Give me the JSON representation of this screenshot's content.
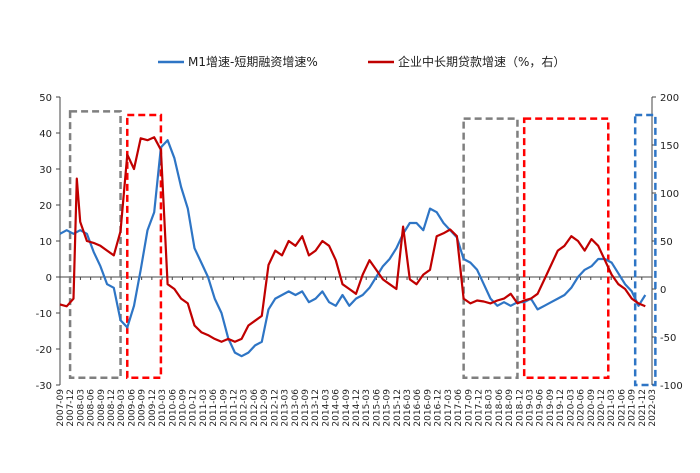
{
  "chart_data": {
    "type": "line",
    "legend": {
      "placement": "top-center"
    },
    "axes": {
      "left": {
        "min": -30,
        "max": 50,
        "ticks": [
          -30,
          -20,
          -10,
          0,
          10,
          20,
          30,
          40,
          50
        ]
      },
      "right": {
        "min": -100,
        "max": 200,
        "ticks": [
          -100,
          -50,
          0,
          50,
          100,
          150,
          200
        ]
      }
    },
    "x_tick_labels": [
      "2007-09",
      "2007-12",
      "2008-03",
      "2008-06",
      "2008-09",
      "2008-12",
      "2009-03",
      "2009-06",
      "2009-09",
      "2009-12",
      "2010-03",
      "2010-06",
      "2010-09",
      "2010-12",
      "2011-03",
      "2011-06",
      "2011-09",
      "2011-12",
      "2012-03",
      "2012-06",
      "2012-09",
      "2012-12",
      "2013-03",
      "2013-06",
      "2013-09",
      "2013-12",
      "2014-03",
      "2014-06",
      "2014-09",
      "2014-12",
      "2015-03",
      "2015-06",
      "2015-09",
      "2015-12",
      "2016-03",
      "2016-06",
      "2016-09",
      "2016-12",
      "2017-03",
      "2017-06",
      "2017-09",
      "2017-12",
      "2018-03",
      "2018-06",
      "2018-09",
      "2018-12",
      "2019-03",
      "2019-06",
      "2019-09",
      "2019-12",
      "2020-03",
      "2020-06",
      "2020-09",
      "2020-12",
      "2021-03",
      "2021-06",
      "2021-09",
      "2021-12",
      "2022-03"
    ],
    "series": [
      {
        "name": "M1增速-短期融资增速%",
        "axis": "left",
        "color": "#2e75c5",
        "values": [
          [
            0,
            12
          ],
          [
            2,
            13
          ],
          [
            4,
            12
          ],
          [
            6,
            13
          ],
          [
            8,
            12
          ],
          [
            10,
            7
          ],
          [
            12,
            3
          ],
          [
            14,
            -2
          ],
          [
            16,
            -3
          ],
          [
            18,
            -12
          ],
          [
            20,
            -14
          ],
          [
            22,
            -8
          ],
          [
            24,
            2
          ],
          [
            26,
            13
          ],
          [
            28,
            18
          ],
          [
            30,
            36
          ],
          [
            32,
            38
          ],
          [
            34,
            33
          ],
          [
            36,
            25
          ],
          [
            38,
            19
          ],
          [
            40,
            8
          ],
          [
            42,
            4
          ],
          [
            44,
            0
          ],
          [
            46,
            -6
          ],
          [
            48,
            -10
          ],
          [
            50,
            -17
          ],
          [
            52,
            -21
          ],
          [
            54,
            -22
          ],
          [
            56,
            -21
          ],
          [
            58,
            -19
          ],
          [
            60,
            -18
          ],
          [
            62,
            -9
          ],
          [
            64,
            -6
          ],
          [
            66,
            -5
          ],
          [
            68,
            -4
          ],
          [
            70,
            -5
          ],
          [
            72,
            -4
          ],
          [
            74,
            -7
          ],
          [
            76,
            -6
          ],
          [
            78,
            -4
          ],
          [
            80,
            -7
          ],
          [
            82,
            -8
          ],
          [
            84,
            -5
          ],
          [
            86,
            -8
          ],
          [
            88,
            -6
          ],
          [
            90,
            -5
          ],
          [
            92,
            -3
          ],
          [
            94,
            0
          ],
          [
            96,
            3
          ],
          [
            98,
            5
          ],
          [
            100,
            8
          ],
          [
            102,
            12
          ],
          [
            104,
            15
          ],
          [
            106,
            15
          ],
          [
            108,
            13
          ],
          [
            110,
            19
          ],
          [
            112,
            18
          ],
          [
            114,
            15
          ],
          [
            116,
            13
          ],
          [
            118,
            11
          ],
          [
            120,
            5
          ],
          [
            122,
            4
          ],
          [
            124,
            2
          ],
          [
            126,
            -2
          ],
          [
            128,
            -6
          ],
          [
            130,
            -8
          ],
          [
            132,
            -7
          ],
          [
            134,
            -8
          ],
          [
            136,
            -7
          ],
          [
            138,
            -7
          ],
          [
            140,
            -6
          ],
          [
            142,
            -9
          ],
          [
            144,
            -8
          ],
          [
            146,
            -7
          ],
          [
            148,
            -6
          ],
          [
            150,
            -5
          ],
          [
            152,
            -3
          ],
          [
            154,
            0
          ],
          [
            156,
            2
          ],
          [
            158,
            3
          ],
          [
            160,
            5
          ],
          [
            162,
            5
          ],
          [
            164,
            4
          ],
          [
            166,
            1
          ],
          [
            168,
            -2
          ],
          [
            170,
            -4
          ],
          [
            172,
            -8
          ],
          [
            174,
            -5
          ]
        ]
      },
      {
        "name": "企业中长期贷款增速（%，右）",
        "axis": "right",
        "color": "#c00000",
        "values": [
          [
            0,
            -16
          ],
          [
            2,
            -18
          ],
          [
            4,
            -10
          ],
          [
            5,
            115
          ],
          [
            6,
            70
          ],
          [
            8,
            50
          ],
          [
            10,
            48
          ],
          [
            12,
            45
          ],
          [
            14,
            40
          ],
          [
            16,
            35
          ],
          [
            18,
            60
          ],
          [
            20,
            140
          ],
          [
            22,
            125
          ],
          [
            24,
            157
          ],
          [
            26,
            155
          ],
          [
            28,
            158
          ],
          [
            30,
            145
          ],
          [
            32,
            5
          ],
          [
            34,
            0
          ],
          [
            36,
            -10
          ],
          [
            38,
            -15
          ],
          [
            40,
            -38
          ],
          [
            42,
            -45
          ],
          [
            44,
            -48
          ],
          [
            46,
            -52
          ],
          [
            48,
            -55
          ],
          [
            50,
            -52
          ],
          [
            52,
            -55
          ],
          [
            54,
            -52
          ],
          [
            56,
            -38
          ],
          [
            58,
            -33
          ],
          [
            60,
            -28
          ],
          [
            62,
            25
          ],
          [
            64,
            40
          ],
          [
            66,
            35
          ],
          [
            68,
            50
          ],
          [
            70,
            45
          ],
          [
            72,
            55
          ],
          [
            74,
            35
          ],
          [
            76,
            40
          ],
          [
            78,
            50
          ],
          [
            80,
            45
          ],
          [
            82,
            30
          ],
          [
            84,
            5
          ],
          [
            86,
            0
          ],
          [
            88,
            -5
          ],
          [
            90,
            15
          ],
          [
            92,
            30
          ],
          [
            94,
            20
          ],
          [
            96,
            10
          ],
          [
            98,
            5
          ],
          [
            100,
            0
          ],
          [
            102,
            65
          ],
          [
            104,
            10
          ],
          [
            106,
            5
          ],
          [
            108,
            15
          ],
          [
            110,
            20
          ],
          [
            112,
            55
          ],
          [
            114,
            58
          ],
          [
            116,
            62
          ],
          [
            118,
            55
          ],
          [
            120,
            -10
          ],
          [
            122,
            -15
          ],
          [
            124,
            -12
          ],
          [
            126,
            -13
          ],
          [
            128,
            -15
          ],
          [
            130,
            -12
          ],
          [
            132,
            -10
          ],
          [
            134,
            -5
          ],
          [
            136,
            -15
          ],
          [
            138,
            -12
          ],
          [
            140,
            -10
          ],
          [
            142,
            -5
          ],
          [
            144,
            10
          ],
          [
            146,
            25
          ],
          [
            148,
            40
          ],
          [
            150,
            45
          ],
          [
            152,
            55
          ],
          [
            154,
            50
          ],
          [
            156,
            40
          ],
          [
            158,
            52
          ],
          [
            160,
            45
          ],
          [
            162,
            30
          ],
          [
            164,
            15
          ],
          [
            166,
            5
          ],
          [
            168,
            0
          ],
          [
            170,
            -10
          ],
          [
            172,
            -15
          ],
          [
            174,
            -18
          ]
        ]
      }
    ],
    "highlight_boxes": [
      {
        "x0": 3,
        "x1": 18,
        "y0": 46,
        "y1": -28,
        "color": "#7f7f7f"
      },
      {
        "x0": 20,
        "x1": 30,
        "y0": 45,
        "y1": -28,
        "color": "#ff0000"
      },
      {
        "x0": 120,
        "x1": 136,
        "y0": 44,
        "y1": -28,
        "color": "#7f7f7f"
      },
      {
        "x0": 138,
        "x1": 163,
        "y0": 44,
        "y1": -28,
        "color": "#ff0000"
      },
      {
        "x0": 171,
        "x1": 177,
        "y0": 45,
        "y1": -30,
        "color": "#2e75c5"
      }
    ]
  }
}
